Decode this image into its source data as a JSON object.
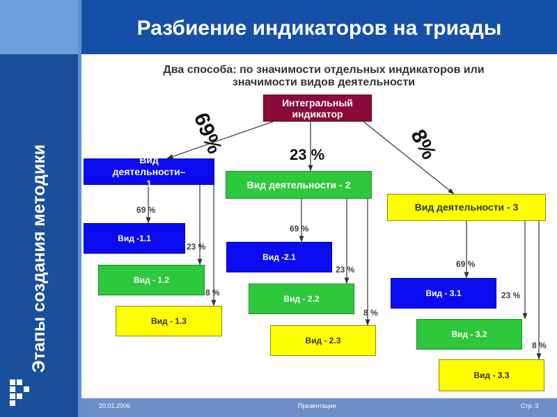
{
  "title": "Разбиение индикаторов на триады",
  "subtitle_line1": "Два способа: по значимости  отдельных индикаторов или",
  "subtitle_line2": "значимости видов деятельности",
  "sidebar_text": "Этапы создания методики",
  "root": "Интегральный индикатор",
  "top_percents": {
    "left": "69%",
    "center": "23 %",
    "right": "8%"
  },
  "activities": [
    {
      "label": "Вид деятельности–1",
      "subs": [
        "Вид -1.1",
        "Вид - 1.2",
        "Вид - 1.3"
      ]
    },
    {
      "label": "Вид деятельности - 2",
      "subs": [
        "Вид -2.1",
        "Вид - 2.2",
        "Вид - 2.3"
      ]
    },
    {
      "label": "Вид деятельности - 3",
      "subs": [
        "Вид - 3.1",
        "Вид - 3.2",
        "Вид - 3.3"
      ]
    }
  ],
  "sub_percents": [
    "69 %",
    "23 %",
    "8 %"
  ],
  "footer": {
    "date": "20.01.2006",
    "center": "Презентация",
    "page": "Стр. 3"
  },
  "colors": {
    "sidebar": "#1a4f9c",
    "titlebar": "#1450a8",
    "root_box": "#8b0a3a",
    "blue": "#0b0bf0",
    "green": "#2ec83c",
    "yellow": "#ffff00"
  }
}
